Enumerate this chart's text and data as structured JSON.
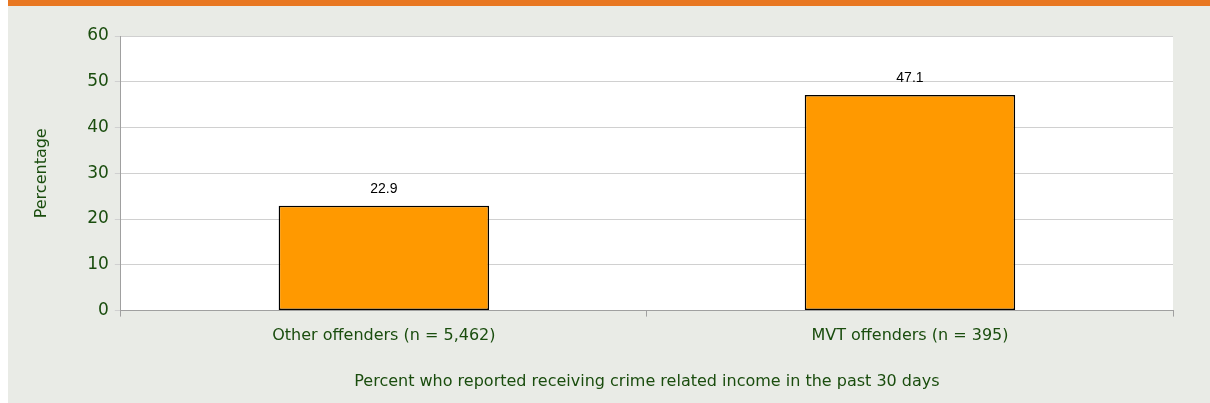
{
  "chart_data": {
    "type": "bar",
    "ylabel": "Percentage",
    "xlabel": "Percent who reported receiving crime related income in the past 30 days",
    "categories": [
      "Other offenders (n = 5,462)",
      "MVT offenders (n = 395)"
    ],
    "values": [
      22.9,
      47.1
    ],
    "color": "#ff9900",
    "ylim": [
      0,
      60
    ],
    "yticks": [
      0,
      10,
      20,
      30,
      40,
      50,
      60
    ],
    "grid": "y",
    "data_labels": true,
    "legend": false
  }
}
